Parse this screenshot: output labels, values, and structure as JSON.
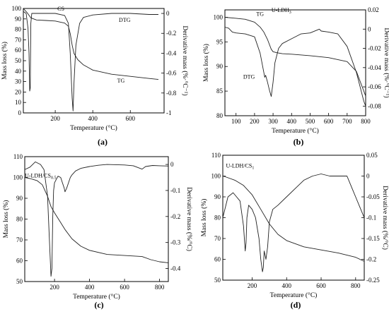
{
  "chart_data": [
    {
      "id": "a",
      "type": "line",
      "panel_label": "(a)",
      "xlabel": "Temperature (°C)",
      "ylabel": "Mass loss (%)",
      "y2label": "Derivative mass (%·°C⁻¹)",
      "xlim": [
        30,
        780
      ],
      "ylim": [
        0,
        100
      ],
      "y2lim": [
        -1.0,
        0.05
      ],
      "xticks": [
        200,
        400,
        600
      ],
      "yticks": [
        0,
        10,
        20,
        30,
        40,
        50,
        60,
        70,
        80,
        90,
        100
      ],
      "y2ticks": [
        -1.0,
        -0.8,
        -0.6,
        -0.4,
        -0.2,
        0.0
      ],
      "annotations": [
        {
          "text": "CS",
          "x": 230,
          "y": 98,
          "axis": "left"
        },
        {
          "text": "DTG",
          "x": 570,
          "y": 87,
          "axis": "left"
        },
        {
          "text": "TG",
          "x": 550,
          "y": 29,
          "axis": "left"
        }
      ],
      "series": [
        {
          "name": "TG",
          "axis": "left",
          "x": [
            30,
            50,
            70,
            100,
            150,
            200,
            250,
            270,
            280,
            290,
            300,
            320,
            350,
            400,
            500,
            600,
            700,
            750
          ],
          "y": [
            100,
            96,
            91,
            89,
            88.5,
            88,
            86,
            83,
            76,
            65,
            57,
            51,
            46,
            41,
            37,
            35,
            33,
            32
          ]
        },
        {
          "name": "DTG",
          "axis": "right",
          "x": [
            30,
            45,
            55,
            60,
            64,
            67,
            70,
            75,
            90,
            120,
            200,
            250,
            270,
            280,
            290,
            295,
            300,
            310,
            330,
            350,
            400,
            500,
            600,
            700,
            750
          ],
          "y": [
            0.02,
            0.0,
            -0.15,
            -0.4,
            -0.78,
            -0.75,
            -0.1,
            0.0,
            0.0,
            0.0,
            0.0,
            -0.02,
            -0.1,
            -0.4,
            -0.85,
            -0.98,
            -0.7,
            -0.32,
            -0.1,
            -0.04,
            -0.015,
            0.0,
            0.0,
            -0.01,
            -0.01
          ]
        }
      ]
    },
    {
      "id": "b",
      "type": "line",
      "panel_label": "(b)",
      "xlabel": "Temperature (°C)",
      "ylabel": "Mass loss (%)",
      "y2label": "Derivative mass (%·°C⁻¹)",
      "xlim": [
        40,
        800
      ],
      "ylim": [
        80,
        101.5
      ],
      "y2lim": [
        -0.09,
        0.02
      ],
      "xticks": [
        100,
        200,
        300,
        400,
        500,
        600,
        700,
        800
      ],
      "yticks": [
        80,
        85,
        90,
        95,
        100
      ],
      "y2ticks": [
        -0.08,
        -0.06,
        -0.04,
        -0.02,
        0.0,
        0.02
      ],
      "annotations": [
        {
          "text": "TG",
          "x": 230,
          "y": 100.3,
          "axis": "left"
        },
        {
          "text": "U-LDH",
          "subscript": "3",
          "x": 345,
          "y": 101.1,
          "axis": "left"
        },
        {
          "text": "DTG",
          "x": 170,
          "y": 87.5,
          "axis": "left"
        }
      ],
      "series": [
        {
          "name": "TG",
          "axis": "left",
          "x": [
            40,
            100,
            150,
            200,
            230,
            250,
            270,
            290,
            300,
            320,
            350,
            400,
            500,
            600,
            700,
            750,
            800
          ],
          "y": [
            100,
            99.8,
            99.6,
            99,
            98,
            97,
            95.5,
            93.5,
            93,
            92.8,
            92.6,
            92.5,
            92.2,
            91.8,
            91,
            89,
            84
          ]
        },
        {
          "name": "DTG",
          "axis": "right",
          "x": [
            40,
            60,
            80,
            100,
            150,
            200,
            230,
            250,
            255,
            260,
            270,
            280,
            290,
            300,
            310,
            330,
            350,
            400,
            450,
            500,
            550,
            560,
            600,
            650,
            700,
            750,
            790,
            800
          ],
          "y": [
            0.002,
            0.001,
            -0.003,
            -0.004,
            -0.005,
            -0.008,
            -0.025,
            -0.045,
            -0.05,
            -0.048,
            -0.055,
            -0.063,
            -0.07,
            -0.055,
            -0.035,
            -0.02,
            -0.015,
            -0.01,
            -0.005,
            -0.004,
            0.0,
            -0.002,
            -0.003,
            -0.005,
            -0.018,
            -0.045,
            -0.075,
            -0.08
          ]
        }
      ]
    },
    {
      "id": "c",
      "type": "line",
      "panel_label": "(c)",
      "xlabel": "Temperature (°C)",
      "ylabel": "Mass loss (%)",
      "y2label": "Derivative mass (%/°C)",
      "xlim": [
        30,
        850
      ],
      "ylim": [
        50,
        110
      ],
      "y2lim": [
        -0.45,
        0.03
      ],
      "xticks": [
        200,
        400,
        600,
        800
      ],
      "yticks": [
        50,
        60,
        70,
        80,
        90,
        100,
        110
      ],
      "y2ticks": [
        -0.4,
        -0.3,
        -0.2,
        -0.1,
        0.0
      ],
      "annotations": [
        {
          "text": "U-LDH/CS",
          "subscript": "0.5",
          "x": 120,
          "y": 100,
          "axis": "left"
        }
      ],
      "series": [
        {
          "name": "TG",
          "axis": "left",
          "x": [
            30,
            60,
            100,
            130,
            160,
            180,
            200,
            230,
            260,
            300,
            350,
            400,
            500,
            600,
            700,
            750,
            800,
            850
          ],
          "y": [
            100,
            99.5,
            98.5,
            96.5,
            91,
            86,
            83,
            79,
            75,
            70.5,
            67,
            65,
            63,
            62.5,
            62,
            60.5,
            59.5,
            59
          ]
        },
        {
          "name": "DTG",
          "axis": "right",
          "x": [
            30,
            60,
            90,
            120,
            140,
            160,
            170,
            180,
            185,
            190,
            195,
            200,
            220,
            235,
            245,
            255,
            260,
            270,
            280,
            290,
            300,
            320,
            350,
            400,
            450,
            500,
            600,
            650,
            700,
            720,
            760,
            800,
            850
          ],
          "y": [
            -0.02,
            -0.01,
            0.01,
            0.0,
            -0.02,
            -0.12,
            -0.28,
            -0.43,
            -0.4,
            -0.2,
            -0.1,
            -0.07,
            -0.045,
            -0.05,
            -0.07,
            -0.09,
            -0.105,
            -0.09,
            -0.07,
            -0.05,
            -0.04,
            -0.025,
            -0.015,
            -0.008,
            -0.003,
            0.0,
            -0.002,
            -0.005,
            -0.018,
            -0.008,
            -0.004,
            -0.005,
            -0.006
          ]
        }
      ]
    },
    {
      "id": "d",
      "type": "line",
      "panel_label": "(d)",
      "xlabel": "Temperature (°C)",
      "ylabel": "Mass loss (%)",
      "y2label": "Derivative mass (%/°C)",
      "xlim": [
        30,
        850
      ],
      "ylim": [
        50,
        110
      ],
      "y2lim": [
        -0.25,
        0.05
      ],
      "xticks": [
        200,
        400,
        600,
        800
      ],
      "yticks": [
        50,
        60,
        70,
        80,
        90,
        100,
        110
      ],
      "y2ticks": [
        -0.25,
        -0.2,
        -0.15,
        -0.1,
        -0.05,
        0.0,
        0.05
      ],
      "annotations": [
        {
          "text": "U-LDH/CS",
          "subscript": "1",
          "x": 130,
          "y": 104,
          "axis": "left"
        }
      ],
      "series": [
        {
          "name": "TG",
          "axis": "left",
          "x": [
            30,
            50,
            100,
            150,
            200,
            250,
            300,
            350,
            400,
            500,
            600,
            700,
            800,
            850
          ],
          "y": [
            100,
            99.5,
            98,
            95.5,
            91,
            84,
            77,
            72,
            69,
            66,
            64.5,
            63,
            61,
            59
          ]
        },
        {
          "name": "DTG",
          "axis": "right",
          "x": [
            30,
            60,
            90,
            110,
            130,
            150,
            160,
            165,
            170,
            180,
            200,
            220,
            240,
            250,
            260,
            265,
            270,
            280,
            290,
            300,
            320,
            350,
            400,
            450,
            500,
            550,
            600,
            650,
            700,
            750,
            780,
            800,
            830,
            850
          ],
          "y": [
            -0.1,
            -0.05,
            -0.04,
            -0.05,
            -0.06,
            -0.12,
            -0.18,
            -0.16,
            -0.1,
            -0.07,
            -0.08,
            -0.1,
            -0.15,
            -0.2,
            -0.23,
            -0.22,
            -0.18,
            -0.2,
            -0.17,
            -0.11,
            -0.08,
            -0.07,
            -0.05,
            -0.03,
            -0.01,
            0.0,
            0.005,
            0.0,
            0.0,
            0.0,
            -0.03,
            -0.05,
            -0.08,
            -0.1
          ]
        }
      ]
    }
  ]
}
